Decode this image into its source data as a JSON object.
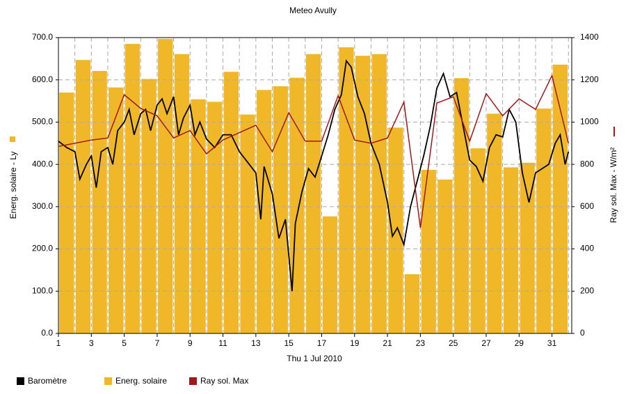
{
  "chart_data": {
    "type": "bar-line",
    "title": "Meteo Avully",
    "xlabel": "Thu 1 Jul 2010",
    "ylabel": "Energ. solaire - Ly",
    "y2label": "Ray sol. Max - W/m²",
    "xlim": [
      1,
      32.2
    ],
    "xticks": [
      1,
      3,
      5,
      7,
      9,
      11,
      13,
      15,
      17,
      19,
      21,
      23,
      25,
      27,
      29,
      31
    ],
    "ylim": [
      0,
      700
    ],
    "yticks": [
      {
        "value": 0,
        "label": "0.0"
      },
      {
        "value": 100,
        "label": "100.0"
      },
      {
        "value": 200,
        "label": "200.0"
      },
      {
        "value": 300,
        "label": "300.0"
      },
      {
        "value": 400,
        "label": "400.0"
      },
      {
        "value": 500,
        "label": "500.0"
      },
      {
        "value": 600,
        "label": "600.0"
      },
      {
        "value": 700,
        "label": "700.0"
      }
    ],
    "y2lim": [
      0,
      1400
    ],
    "y2ticks": [
      0,
      200,
      400,
      600,
      800,
      1000,
      1200,
      1400
    ],
    "grid": true,
    "series": [
      {
        "name": "Baromètre",
        "type": "line",
        "color": "#000000",
        "x": [
          1,
          1.5,
          2,
          2.3,
          2.7,
          3,
          3.3,
          3.6,
          4,
          4.3,
          4.6,
          5,
          5.3,
          5.6,
          6,
          6.3,
          6.6,
          7,
          7.3,
          7.6,
          8,
          8.3,
          8.6,
          9,
          9.3,
          9.6,
          10,
          10.5,
          11,
          11.5,
          12,
          12.5,
          13,
          13.3,
          13.5,
          14,
          14.4,
          14.8,
          15.2,
          15.4,
          15.8,
          16.2,
          16.6,
          17,
          17.4,
          17.8,
          18.2,
          18.5,
          18.8,
          19.2,
          19.6,
          20,
          20.5,
          21,
          21.3,
          21.6,
          22,
          22.4,
          22.8,
          23.2,
          23.6,
          24,
          24.4,
          24.8,
          25.2,
          25.5,
          26,
          26.4,
          26.8,
          27.2,
          27.6,
          28,
          28.4,
          28.8,
          29.2,
          29.6,
          30,
          30.4,
          30.8,
          31.2,
          31.5,
          31.8,
          32
        ],
        "values": [
          455,
          440,
          430,
          365,
          400,
          420,
          345,
          430,
          440,
          400,
          480,
          500,
          530,
          470,
          520,
          530,
          480,
          540,
          555,
          520,
          560,
          470,
          510,
          540,
          470,
          500,
          460,
          440,
          470,
          470,
          430,
          405,
          380,
          270,
          395,
          330,
          225,
          270,
          100,
          260,
          335,
          390,
          370,
          420,
          470,
          530,
          565,
          645,
          630,
          560,
          520,
          450,
          400,
          310,
          230,
          250,
          210,
          300,
          360,
          420,
          490,
          580,
          615,
          560,
          570,
          510,
          410,
          395,
          360,
          440,
          470,
          465,
          530,
          500,
          380,
          310,
          380,
          390,
          400,
          450,
          470,
          400,
          430
        ]
      },
      {
        "name": "Energ. solaire",
        "type": "bar",
        "color": "#f0b828",
        "x": [
          1,
          2,
          3,
          4,
          5,
          6,
          7,
          8,
          9,
          10,
          11,
          12,
          13,
          14,
          15,
          16,
          17,
          18,
          19,
          20,
          21,
          22,
          23,
          24,
          25,
          26,
          27,
          28,
          29,
          30,
          31
        ],
        "values": [
          570,
          647,
          621,
          582,
          685,
          602,
          697,
          661,
          554,
          548,
          619,
          518,
          576,
          585,
          605,
          661,
          277,
          677,
          657,
          661,
          487,
          140,
          387,
          364,
          604,
          438,
          520,
          393,
          404,
          532,
          636
        ]
      },
      {
        "name": "Ray sol. Max",
        "type": "line",
        "axis": "y2",
        "color": "#a01818",
        "x": [
          1,
          3,
          4,
          5,
          6,
          7,
          8,
          9,
          10,
          11,
          12,
          13,
          14,
          15,
          16,
          17,
          18,
          19,
          20,
          21,
          22,
          23,
          24,
          25,
          26,
          27,
          28,
          29,
          30,
          31,
          32
        ],
        "values": [
          885,
          915,
          925,
          1130,
          1065,
          1030,
          925,
          960,
          850,
          915,
          950,
          985,
          860,
          1045,
          910,
          910,
          1125,
          915,
          900,
          925,
          1095,
          500,
          1090,
          1120,
          910,
          1135,
          1030,
          1110,
          1060,
          1220,
          900
        ]
      }
    ]
  }
}
